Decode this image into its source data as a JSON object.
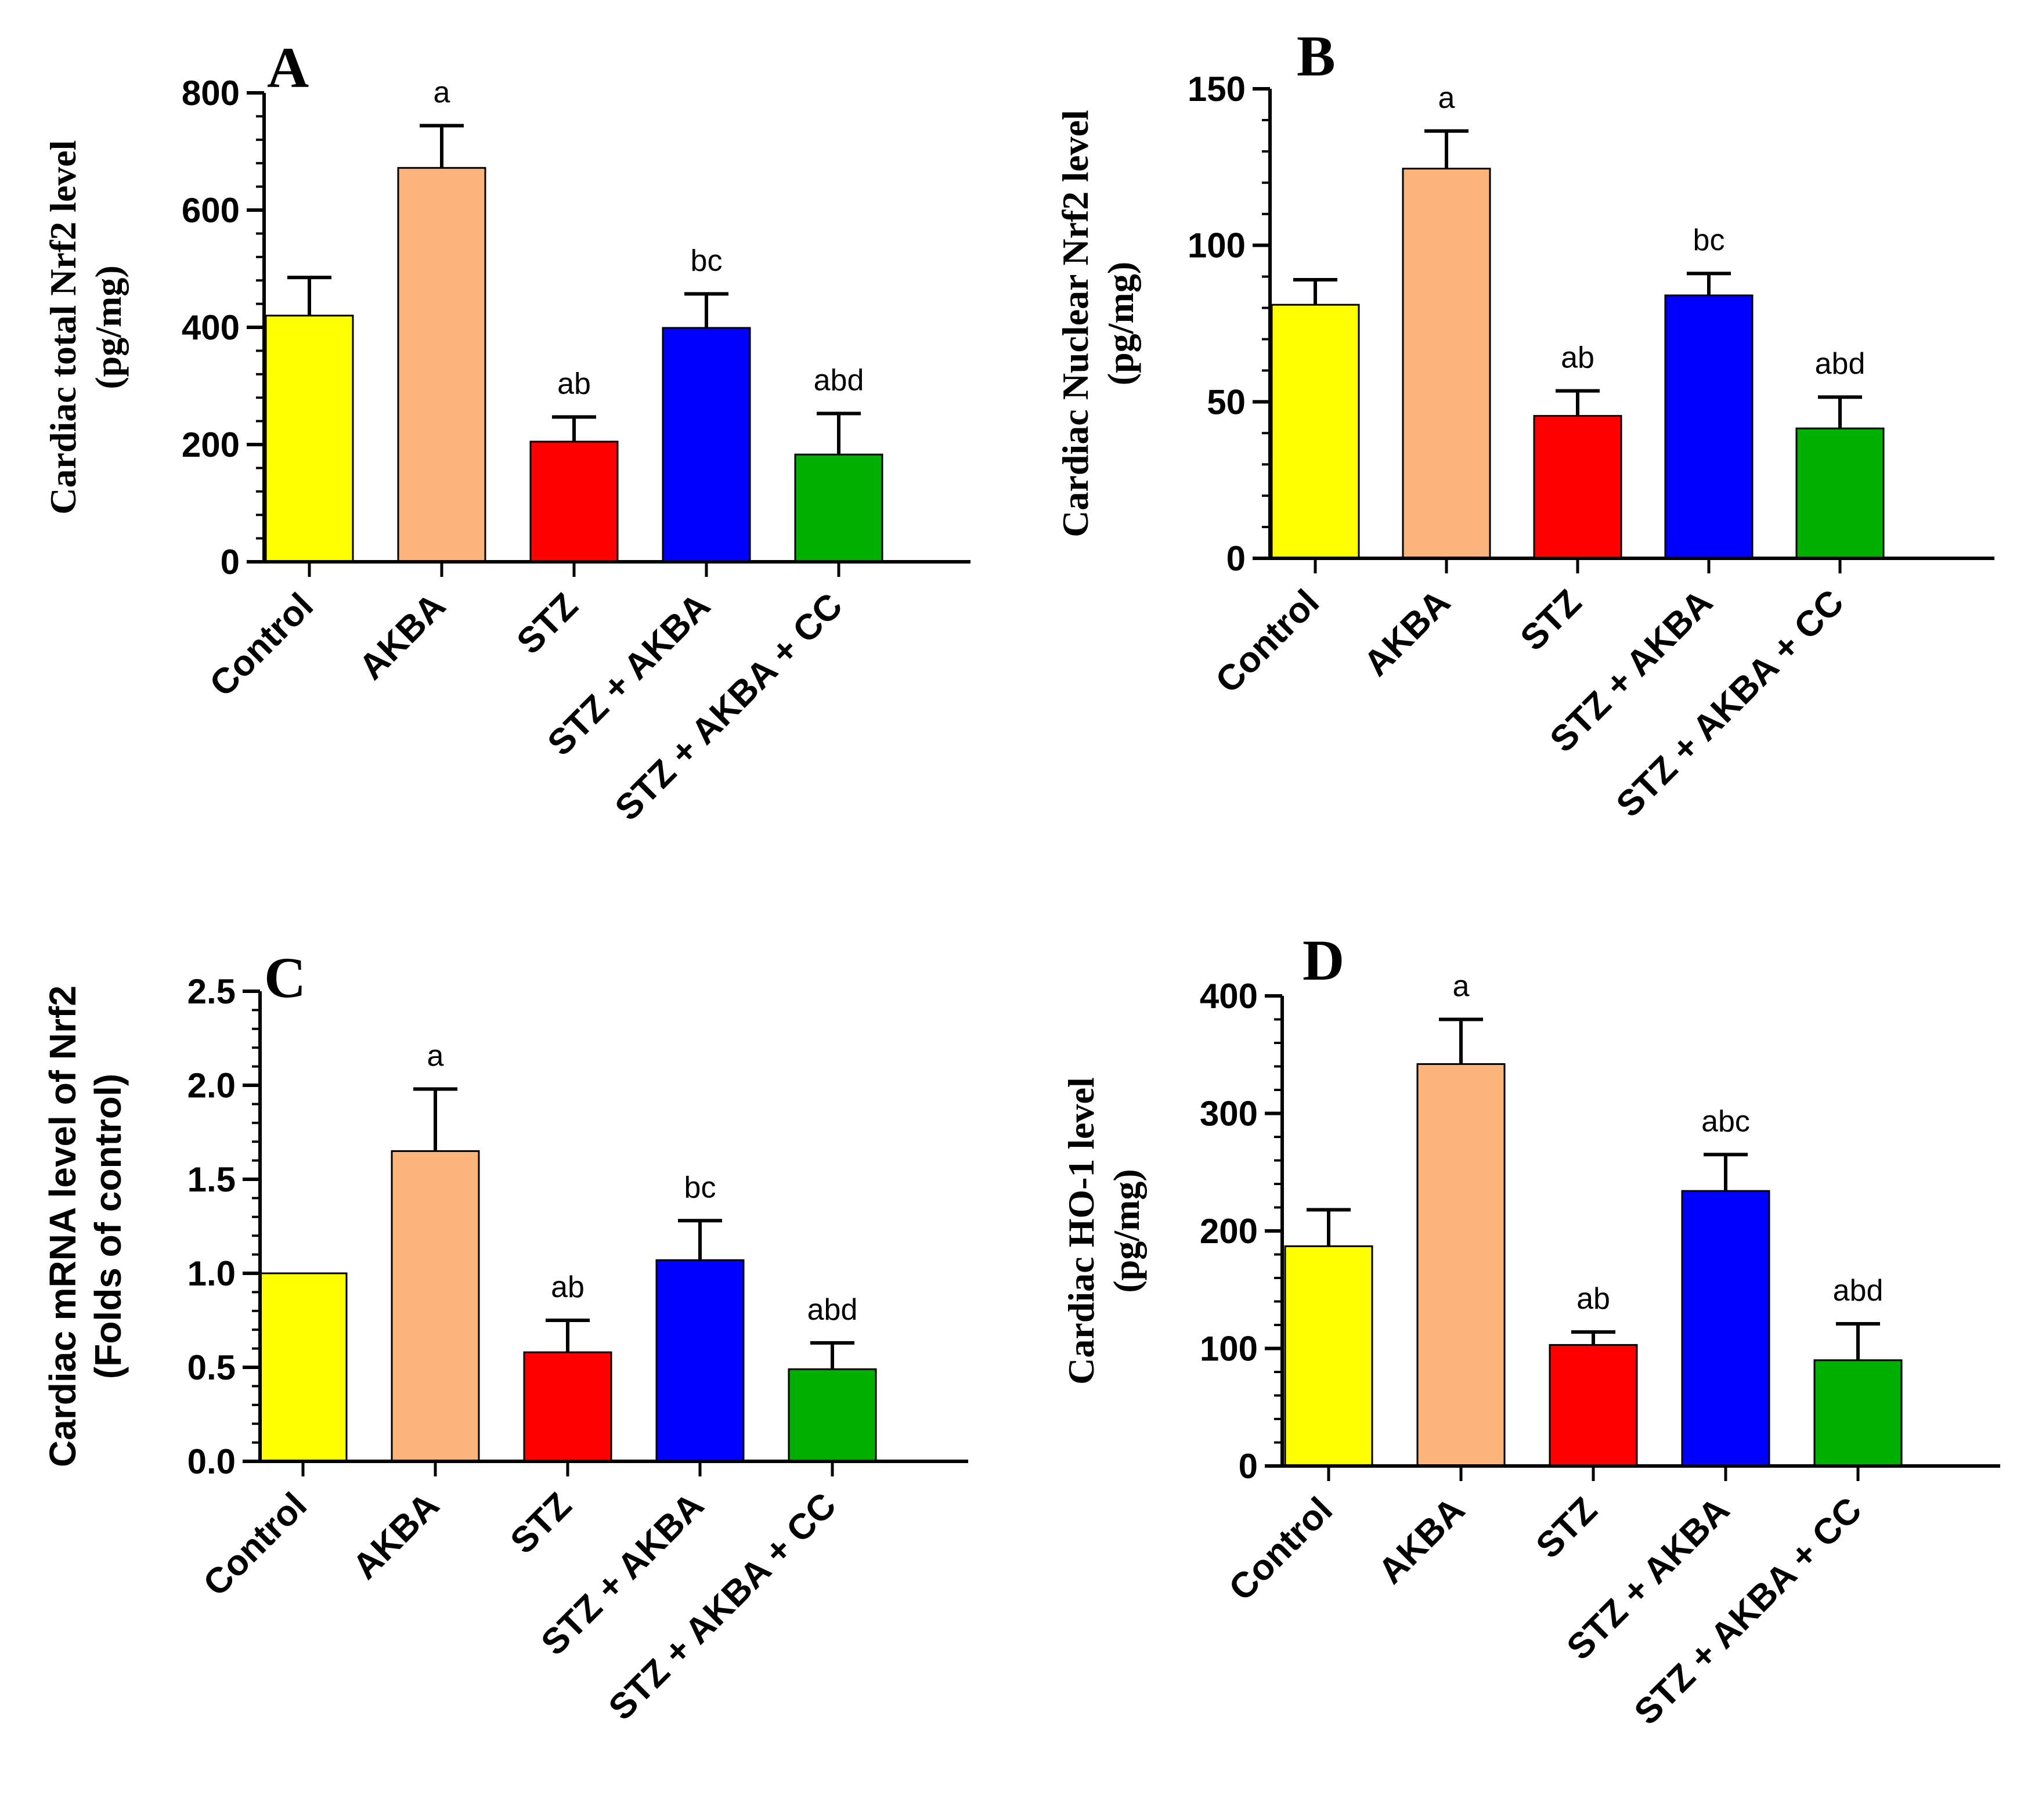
{
  "chart_data": [
    {
      "type": "bar",
      "panel": "A",
      "categories": [
        "Control",
        "AKBA",
        "STZ",
        "STZ + AKBA",
        "STZ + AKBA + CC"
      ],
      "values": [
        420,
        672,
        205,
        399,
        183
      ],
      "errors": [
        65,
        72,
        42,
        58,
        70
      ],
      "significance": [
        "",
        "a",
        "ab",
        "bc",
        "abd"
      ],
      "colors": [
        "#ffff00",
        "#fbb57a",
        "#ff0000",
        "#0000ff",
        "#00b000"
      ],
      "ylabel": [
        "Cardiac total Nrf2 level",
        "(pg/mg)"
      ],
      "ylabel_style": "serif",
      "ylim": [
        0,
        800
      ],
      "yticks": [
        0,
        200,
        400,
        600,
        800
      ],
      "ytick_labels": [
        "0",
        "200",
        "400",
        "600",
        "800"
      ],
      "minor_step": 40
    },
    {
      "type": "bar",
      "panel": "B",
      "categories": [
        "Control",
        "AKBA",
        "STZ",
        "STZ + AKBA",
        "STZ + AKBA + CC"
      ],
      "values": [
        81,
        124.5,
        45.5,
        84,
        41.5
      ],
      "errors": [
        8,
        12,
        8,
        7,
        10
      ],
      "significance": [
        "",
        "a",
        "ab",
        "bc",
        "abd"
      ],
      "colors": [
        "#ffff00",
        "#fbb57a",
        "#ff0000",
        "#0000ff",
        "#00b000"
      ],
      "ylabel": [
        "Cardiac Nuclear Nrf2 level",
        "(pg/mg)"
      ],
      "ylabel_style": "serif",
      "ylim": [
        0,
        150
      ],
      "yticks": [
        0,
        50,
        100,
        150
      ],
      "ytick_labels": [
        "0",
        "50",
        "100",
        "150"
      ],
      "minor_step": 10
    },
    {
      "type": "bar",
      "panel": "C",
      "categories": [
        "Control",
        "AKBA",
        "STZ",
        "STZ + AKBA",
        "STZ + AKBA + CC"
      ],
      "values": [
        1.0,
        1.65,
        0.58,
        1.07,
        0.49
      ],
      "errors": [
        0,
        0.33,
        0.17,
        0.21,
        0.14
      ],
      "significance": [
        "",
        "a",
        "ab",
        "bc",
        "abd"
      ],
      "colors": [
        "#ffff00",
        "#fbb57a",
        "#ff0000",
        "#0000ff",
        "#00b000"
      ],
      "ylabel": [
        "Cardiac mRNA level of Nrf2",
        "(Folds of control)"
      ],
      "ylabel_style": "sans",
      "ylim": [
        0,
        2.5
      ],
      "yticks": [
        0,
        0.5,
        1.0,
        1.5,
        2.0,
        2.5
      ],
      "ytick_labels": [
        "0.0",
        "0.5",
        "1.0",
        "1.5",
        "2.0",
        "2.5"
      ],
      "minor_step": 0.1
    },
    {
      "type": "bar",
      "panel": "D",
      "categories": [
        "Control",
        "AKBA",
        "STZ",
        "STZ + AKBA",
        "STZ + AKBA + CC"
      ],
      "values": [
        187,
        342,
        103,
        234,
        90
      ],
      "errors": [
        31,
        38,
        11,
        31,
        31
      ],
      "significance": [
        "",
        "a",
        "ab",
        "abc",
        "abd"
      ],
      "colors": [
        "#ffff00",
        "#fbb57a",
        "#ff0000",
        "#0000ff",
        "#00b000"
      ],
      "ylabel": [
        "Cardiac HO-1 level",
        "(pg/mg)"
      ],
      "ylabel_style": "serif",
      "ylim": [
        0,
        400
      ],
      "yticks": [
        0,
        100,
        200,
        300,
        400
      ],
      "ytick_labels": [
        "0",
        "100",
        "200",
        "300",
        "400"
      ],
      "minor_step": 20
    }
  ]
}
